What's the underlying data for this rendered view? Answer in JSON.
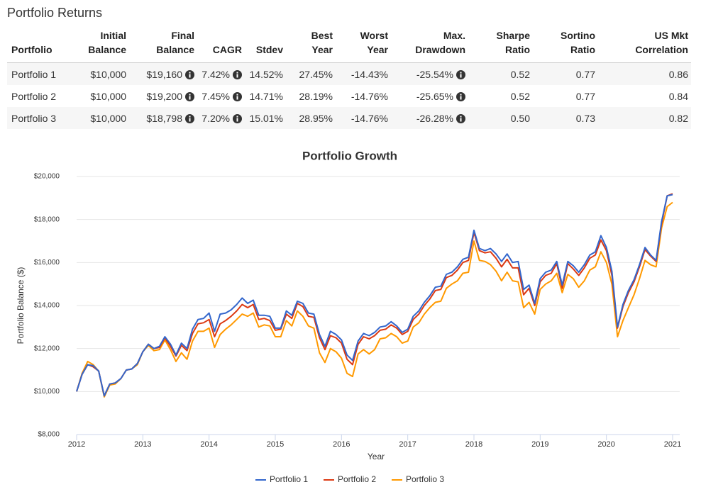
{
  "page": {
    "title": "Portfolio Returns"
  },
  "table": {
    "headers": [
      [
        "Portfolio"
      ],
      [
        "Initial",
        "Balance"
      ],
      [
        "Final",
        "Balance"
      ],
      [
        "CAGR"
      ],
      [
        "Stdev"
      ],
      [
        "Best",
        "Year"
      ],
      [
        "Worst",
        "Year"
      ],
      [
        "Max.",
        "Drawdown"
      ],
      [
        "Sharpe",
        "Ratio"
      ],
      [
        "Sortino",
        "Ratio"
      ],
      [
        "US Mkt",
        "Correlation"
      ]
    ],
    "rows": [
      [
        "Portfolio 1",
        "$10,000",
        "$19,160",
        "7.42%",
        "14.52%",
        "27.45%",
        "-14.43%",
        "-25.54%",
        "0.52",
        "0.77",
        "0.86"
      ],
      [
        "Portfolio 2",
        "$10,000",
        "$19,200",
        "7.45%",
        "14.71%",
        "28.19%",
        "-14.76%",
        "-25.65%",
        "0.52",
        "0.77",
        "0.84"
      ],
      [
        "Portfolio 3",
        "$10,000",
        "$18,798",
        "7.20%",
        "15.01%",
        "28.95%",
        "-14.76%",
        "-26.28%",
        "0.50",
        "0.73",
        "0.82"
      ]
    ]
  },
  "chart_data": {
    "type": "line",
    "title": "Portfolio Growth",
    "x_label": "Year",
    "y_label": "Portfolio Balance ($)",
    "xlim": [
      2012,
      2021
    ],
    "xticks": [
      2012,
      2013,
      2014,
      2015,
      2016,
      2017,
      2018,
      2019,
      2020,
      2021
    ],
    "ylim": [
      8000,
      20000
    ],
    "yticks": [
      {
        "value": 8000,
        "label": "$8,000"
      },
      {
        "value": 10000,
        "label": "$10,000"
      },
      {
        "value": 12000,
        "label": "$12,000"
      },
      {
        "value": 14000,
        "label": "$14,000"
      },
      {
        "value": 16000,
        "label": "$16,000"
      },
      {
        "value": 18000,
        "label": "$18,000"
      },
      {
        "value": 20000,
        "label": "$20,000"
      }
    ],
    "grid": true,
    "legend": "bottom",
    "x": [
      2012,
      2012.083,
      2012.167,
      2012.25,
      2012.333,
      2012.417,
      2012.5,
      2012.583,
      2012.667,
      2012.75,
      2012.833,
      2012.917,
      2013,
      2013.083,
      2013.167,
      2013.25,
      2013.333,
      2013.417,
      2013.5,
      2013.583,
      2013.667,
      2013.75,
      2013.833,
      2013.917,
      2014,
      2014.083,
      2014.167,
      2014.25,
      2014.333,
      2014.417,
      2014.5,
      2014.583,
      2014.667,
      2014.75,
      2014.833,
      2014.917,
      2015,
      2015.083,
      2015.167,
      2015.25,
      2015.333,
      2015.417,
      2015.5,
      2015.583,
      2015.667,
      2015.75,
      2015.833,
      2015.917,
      2016,
      2016.083,
      2016.167,
      2016.25,
      2016.333,
      2016.417,
      2016.5,
      2016.583,
      2016.667,
      2016.75,
      2016.833,
      2016.917,
      2017,
      2017.083,
      2017.167,
      2017.25,
      2017.333,
      2017.417,
      2017.5,
      2017.583,
      2017.667,
      2017.75,
      2017.833,
      2017.917,
      2018,
      2018.083,
      2018.167,
      2018.25,
      2018.333,
      2018.417,
      2018.5,
      2018.583,
      2018.667,
      2018.75,
      2018.833,
      2018.917,
      2019,
      2019.083,
      2019.167,
      2019.25,
      2019.333,
      2019.417,
      2019.5,
      2019.583,
      2019.667,
      2019.75,
      2019.833,
      2019.917,
      2020,
      2020.083,
      2020.167,
      2020.25,
      2020.333,
      2020.417,
      2020.5,
      2020.583,
      2020.667,
      2020.75,
      2020.833,
      2020.917,
      2021
    ],
    "series": [
      {
        "name": "Portfolio 1",
        "color": "#3366cc",
        "values": [
          10000,
          10800,
          11250,
          11200,
          10950,
          9800,
          10350,
          10400,
          10600,
          11000,
          11050,
          11300,
          11850,
          12200,
          12000,
          12100,
          12550,
          12200,
          11700,
          12250,
          12000,
          12900,
          13350,
          13400,
          13650,
          12800,
          13600,
          13650,
          13800,
          14050,
          14350,
          14100,
          14250,
          13550,
          13550,
          13500,
          12950,
          12950,
          13750,
          13550,
          14200,
          14100,
          13650,
          13600,
          12650,
          12100,
          12800,
          12650,
          12400,
          11700,
          11450,
          12350,
          12700,
          12600,
          12750,
          13000,
          13050,
          13250,
          13050,
          12750,
          12900,
          13500,
          13750,
          14150,
          14450,
          14850,
          14900,
          15450,
          15550,
          15800,
          16150,
          16250,
          17500,
          16650,
          16550,
          16650,
          16400,
          16050,
          16400,
          16000,
          16050,
          14750,
          14950,
          14100,
          15250,
          15550,
          15650,
          16050,
          14950,
          16050,
          15850,
          15550,
          15900,
          16350,
          16500,
          17250,
          16700,
          15600,
          13000,
          14050,
          14700,
          15200,
          15900,
          16700,
          16350,
          16100,
          17900,
          19100,
          19160
        ]
      },
      {
        "name": "Portfolio 2",
        "color": "#dc3912",
        "values": [
          10000,
          10800,
          11250,
          11150,
          10950,
          9800,
          10350,
          10400,
          10600,
          11000,
          11050,
          11300,
          11850,
          12200,
          12000,
          12050,
          12500,
          12100,
          11650,
          12150,
          11900,
          12700,
          13150,
          13200,
          13350,
          12550,
          13150,
          13300,
          13500,
          13750,
          14050,
          13900,
          14050,
          13350,
          13400,
          13300,
          12850,
          12900,
          13600,
          13400,
          14100,
          13950,
          13500,
          13450,
          12500,
          11950,
          12600,
          12500,
          12250,
          11500,
          11250,
          12200,
          12550,
          12450,
          12600,
          12850,
          12900,
          13100,
          12950,
          12650,
          12800,
          13350,
          13600,
          14000,
          14300,
          14700,
          14750,
          15300,
          15400,
          15650,
          16000,
          16100,
          17400,
          16550,
          16450,
          16500,
          16200,
          15800,
          16150,
          15750,
          15750,
          14500,
          14800,
          14000,
          15100,
          15400,
          15500,
          15950,
          14800,
          15950,
          15700,
          15400,
          15750,
          16200,
          16350,
          17050,
          16550,
          15400,
          12950,
          13950,
          14600,
          15100,
          15800,
          16600,
          16300,
          16050,
          17800,
          19100,
          19200
        ]
      },
      {
        "name": "Portfolio 3",
        "color": "#ff9900",
        "values": [
          10000,
          10850,
          11400,
          11250,
          10950,
          9750,
          10300,
          10350,
          10600,
          11000,
          11050,
          11250,
          11850,
          12150,
          11900,
          11950,
          12400,
          11950,
          11400,
          11800,
          11500,
          12350,
          12800,
          12800,
          12950,
          12050,
          12650,
          12900,
          13100,
          13350,
          13600,
          13500,
          13650,
          13000,
          13100,
          13050,
          12550,
          12550,
          13300,
          13050,
          13750,
          13500,
          13050,
          12950,
          11800,
          11350,
          12000,
          11850,
          11550,
          10850,
          10700,
          11750,
          11950,
          11750,
          11950,
          12450,
          12500,
          12700,
          12550,
          12250,
          12350,
          13000,
          13200,
          13600,
          13900,
          14150,
          14200,
          14800,
          15000,
          15150,
          15500,
          15550,
          17000,
          16100,
          16050,
          15900,
          15600,
          15150,
          15550,
          15150,
          15100,
          13900,
          14150,
          13600,
          14750,
          15000,
          15150,
          15500,
          14600,
          15450,
          15250,
          14850,
          15150,
          15650,
          15800,
          16500,
          16000,
          15000,
          12550,
          13300,
          13900,
          14500,
          15250,
          16100,
          15900,
          15800,
          17600,
          18600,
          18798
        ]
      }
    ]
  }
}
